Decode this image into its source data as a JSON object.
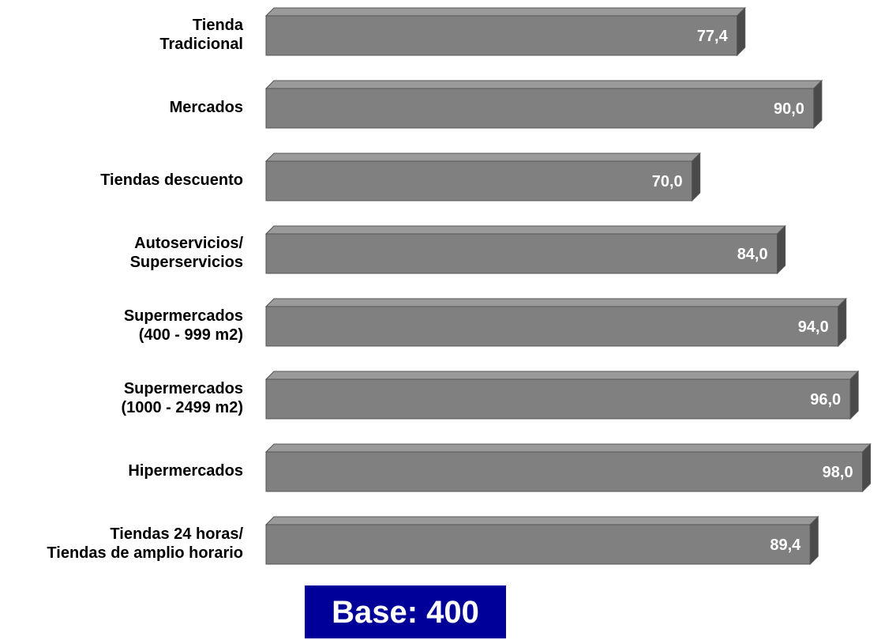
{
  "chart_data": {
    "type": "bar",
    "orientation": "horizontal",
    "categories": [
      [
        "Tienda",
        "Tradicional"
      ],
      [
        "Mercados"
      ],
      [
        "Tiendas descuento"
      ],
      [
        "Autoservicios/",
        "Superservicios"
      ],
      [
        "Supermercados",
        "(400 - 999 m2)"
      ],
      [
        "Supermercados",
        "(1000 - 2499 m2)"
      ],
      [
        "Hipermercados"
      ],
      [
        "Tiendas 24 horas/",
        "Tiendas de amplio horario"
      ]
    ],
    "values": [
      77.4,
      90.0,
      70.0,
      84.0,
      94.0,
      96.0,
      98.0,
      89.4
    ],
    "value_labels": [
      "77,4",
      "90,0",
      "70,0",
      "84,0",
      "94,0",
      "96,0",
      "98,0",
      "89,4"
    ],
    "xlim": [
      0,
      100
    ],
    "grid": false,
    "colors": {
      "bar_front": "#808080",
      "bar_top": "#9a9a9a",
      "bar_side": "#4a4a4a",
      "bar_outline": "#555555",
      "value_text": "#ffffff",
      "category_text": "#000000"
    }
  },
  "footer": {
    "base_label": "Base: 400",
    "background": "#000099",
    "text_color": "#ffffff"
  }
}
